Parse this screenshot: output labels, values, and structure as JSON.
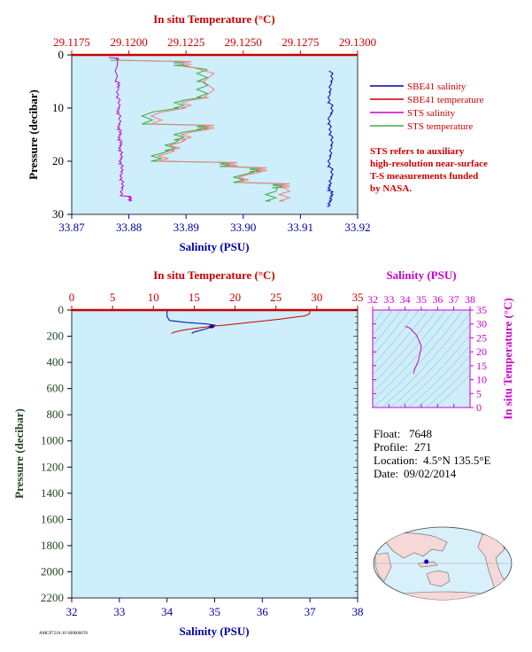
{
  "colors": {
    "plot_bg": "#cdeefa",
    "red": "#cc0000",
    "blue": "#0000aa",
    "magenta": "#cc00cc",
    "green": "#44aa44",
    "pink": "#f08080",
    "dark_green": "#224422"
  },
  "chart_data": [
    {
      "type": "line",
      "panel": "near-surface",
      "title": "",
      "top_axis_label": "In situ Temperature (°C)",
      "top_ticks": [
        "29.1175",
        "29.1200",
        "29.1225",
        "29.1250",
        "29.1275",
        "29.1300"
      ],
      "top_range": [
        29.1175,
        29.13
      ],
      "bottom_axis_label": "Salinity (PSU)",
      "bottom_ticks": [
        "33.87",
        "33.88",
        "33.89",
        "33.90",
        "33.91",
        "33.92"
      ],
      "bottom_range": [
        33.87,
        33.92
      ],
      "ylabel": "Pressure (decibar)",
      "y_ticks": [
        "0",
        "10",
        "20",
        "30"
      ],
      "y_range": [
        0,
        30
      ],
      "legend": [
        {
          "name": "SBE41 salinity",
          "color": "#0000aa"
        },
        {
          "name": "SBE41 temperature",
          "color": "#cc0000"
        },
        {
          "name": "STS salinity",
          "color": "#cc00cc"
        },
        {
          "name": "STS temperature",
          "color": "#44aa44"
        }
      ],
      "note": [
        "STS refers to auxiliary",
        "high-resolution near-surface",
        "T-S measurements funded",
        "by NASA."
      ],
      "series": [
        {
          "name": "SBE41 salinity",
          "axis": "salinity",
          "x": [
            33.915,
            33.9155,
            33.9152,
            33.915,
            33.9155,
            33.915,
            33.9152,
            33.9155,
            33.9153,
            33.915,
            33.9155,
            33.9152,
            33.915,
            33.9155,
            33.9153,
            33.915
          ],
          "y": [
            3,
            5,
            7,
            9,
            11,
            13,
            15,
            17,
            19,
            21,
            23,
            24.5,
            25.5,
            26.5,
            27.5,
            28.5
          ]
        },
        {
          "name": "STS salinity",
          "axis": "salinity",
          "x": [
            33.8765,
            33.878,
            33.8778,
            33.8782,
            33.878,
            33.8783,
            33.8781,
            33.8784,
            33.8782,
            33.8785,
            33.8783,
            33.8786,
            33.8784,
            33.8787,
            33.8785,
            33.8788,
            33.8786,
            33.8789,
            33.8787,
            33.8802,
            33.8802
          ],
          "y": [
            0.5,
            1,
            5,
            6,
            8,
            10,
            11,
            13,
            14,
            15,
            16,
            17,
            18,
            19.5,
            20.5,
            22,
            23.5,
            25,
            26.5,
            27,
            27.5
          ]
        },
        {
          "name": "STS temperature",
          "axis": "temperature",
          "x": [
            29.1192,
            29.1222,
            29.1232,
            29.1232,
            29.1222,
            29.1208,
            29.1232,
            29.1222,
            29.1218,
            29.1212,
            29.1242,
            29.1255,
            29.1248,
            29.1265,
            29.1262
          ],
          "y": [
            1,
            2,
            5,
            8,
            10,
            13,
            14,
            16,
            18,
            20,
            21,
            22,
            24,
            25,
            27.5
          ]
        },
        {
          "name": "SBE41 temperature",
          "axis": "temperature",
          "x": [
            29.1195,
            29.1225,
            29.1235,
            29.1225,
            29.1212,
            29.1235,
            29.1225,
            29.122,
            29.1215,
            29.1245,
            29.1258,
            29.125,
            29.1268,
            29.1268
          ],
          "y": [
            1,
            2,
            8,
            10,
            13,
            14,
            16,
            18,
            20,
            21,
            22,
            24,
            25,
            27.5
          ]
        }
      ]
    },
    {
      "type": "line",
      "panel": "full-profile",
      "title": "",
      "top_axis_label": "In situ Temperature (°C)",
      "top_ticks": [
        "0",
        "5",
        "10",
        "15",
        "20",
        "25",
        "30",
        "35"
      ],
      "top_range": [
        0,
        35
      ],
      "bottom_axis_label": "Salinity (PSU)",
      "bottom_ticks": [
        "32",
        "33",
        "34",
        "35",
        "36",
        "37",
        "38"
      ],
      "bottom_range": [
        32,
        38
      ],
      "ylabel": "Pressure (decibar)",
      "y_ticks": [
        "0",
        "200",
        "400",
        "600",
        "800",
        "1000",
        "1200",
        "1400",
        "1600",
        "1800",
        "2000",
        "2200"
      ],
      "y_range": [
        0,
        2200
      ],
      "series": [
        {
          "name": "SBE41 temperature",
          "axis": "temperature",
          "x": [
            29.2,
            29.1,
            28.5,
            25.5,
            22.5,
            19.5,
            17.0,
            15.0,
            13.5,
            12.5,
            12.2
          ],
          "y": [
            0,
            30,
            45,
            70,
            90,
            110,
            125,
            140,
            155,
            170,
            180
          ]
        },
        {
          "name": "SBE41 salinity",
          "axis": "salinity",
          "x": [
            34.0,
            34.0,
            34.05,
            34.4,
            34.8,
            35.0,
            34.95,
            34.85,
            34.7,
            34.55,
            34.52
          ],
          "y": [
            0,
            50,
            80,
            95,
            105,
            115,
            125,
            140,
            155,
            170,
            180
          ]
        }
      ]
    },
    {
      "type": "line",
      "panel": "T-S inset",
      "title": "",
      "top_axis_label": "Salinity (PSU)",
      "top_ticks": [
        "32",
        "33",
        "34",
        "35",
        "36",
        "37",
        "38"
      ],
      "top_range": [
        32,
        38
      ],
      "ylabel": "In situ Temperature (°C)",
      "y_ticks": [
        "0",
        "5",
        "10",
        "15",
        "20",
        "25",
        "30",
        "35"
      ],
      "y_range": [
        0,
        35
      ],
      "series": [
        {
          "name": "T-S",
          "x": [
            34.0,
            34.3,
            34.7,
            35.0,
            34.9,
            34.8,
            34.6,
            34.52
          ],
          "y": [
            29.2,
            28.5,
            26.0,
            22.0,
            19.0,
            16.5,
            14.0,
            12.2
          ]
        }
      ]
    }
  ],
  "info": {
    "float_label": "Float:",
    "float_value": "7648",
    "profile_label": "Profile:",
    "profile_value": "271",
    "location_label": "Location:",
    "location_value": "4.5°N  135.5°E",
    "date_label": "Date:",
    "date_value": "09/02/2014"
  },
  "footer_code": "AMCP7210-10 S00000078",
  "map": {
    "marker_lat": 4.5,
    "marker_lon": 135.5
  }
}
